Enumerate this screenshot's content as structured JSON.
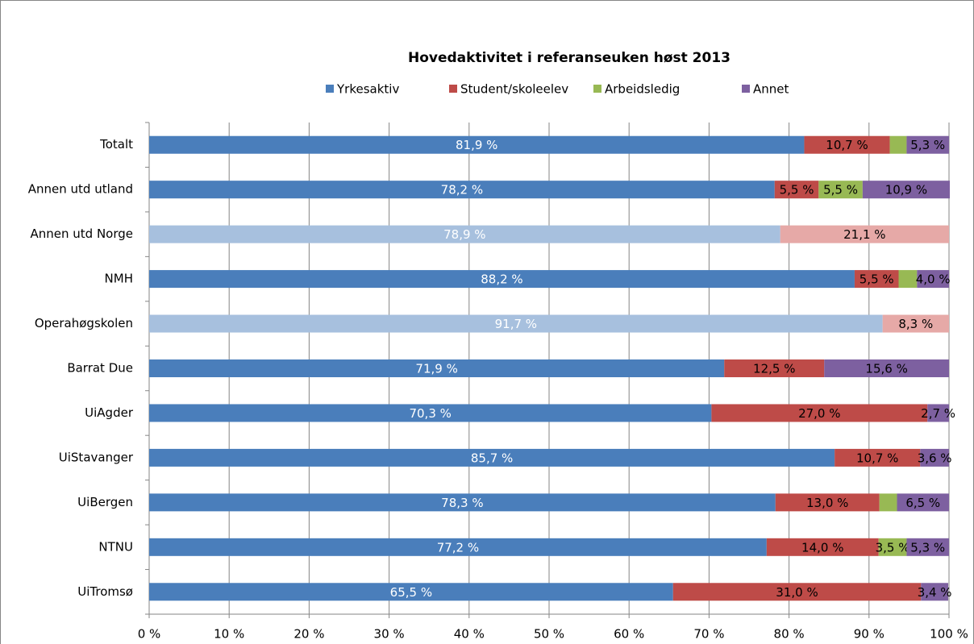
{
  "chart_data": {
    "type": "stacked_bar_horizontal",
    "title": "Hovedaktivitet i referanseuken høst 2013",
    "categories": [
      "Totalt",
      "Annen utd utland",
      "Annen utd Norge",
      "NMH",
      "Operahøgskolen",
      "Barrat Due",
      "UiAgder",
      "UiStavanger",
      "UiBergen",
      "NTNU",
      "UiTromsø"
    ],
    "series": [
      {
        "name": "Yrkesaktiv",
        "color": "#4a7ebb",
        "point_colors": [
          null,
          null,
          "#a7c0de",
          null,
          "#a7c0de",
          null,
          null,
          null,
          null,
          null,
          null
        ],
        "values": [
          81.9,
          78.2,
          78.9,
          88.2,
          91.7,
          71.9,
          70.3,
          85.7,
          78.3,
          77.2,
          65.5
        ],
        "value_labels": [
          "81,9 %",
          "78,2 %",
          "78,9 %",
          "88,2 %",
          "91,7 %",
          "71,9 %",
          "70,3 %",
          "85,7 %",
          "78,3 %",
          "77,2 %",
          "65,5 %"
        ]
      },
      {
        "name": "Student/skoleelev",
        "color": "#be4b48",
        "point_colors": [
          null,
          null,
          "#e6a9a7",
          null,
          "#e6a9a7",
          null,
          null,
          null,
          null,
          null,
          null
        ],
        "values": [
          10.7,
          5.5,
          21.1,
          5.5,
          8.3,
          12.5,
          27.0,
          10.7,
          13.0,
          14.0,
          31.0
        ],
        "value_labels": [
          "10,7 %",
          "5,5 %",
          "21,1 %",
          "5,5 %",
          "8,3 %",
          "12,5 %",
          "27,0 %",
          "10,7 %",
          "13,0 %",
          "14,0 %",
          "31,0 %"
        ]
      },
      {
        "name": "Arbeidsledig",
        "color": "#98b954",
        "point_colors": [
          null,
          null,
          null,
          null,
          null,
          null,
          null,
          null,
          null,
          null,
          null
        ],
        "values": [
          2.1,
          5.5,
          null,
          2.3,
          null,
          null,
          null,
          null,
          2.2,
          3.5,
          null
        ],
        "value_labels": [
          null,
          "5,5 %",
          null,
          null,
          null,
          null,
          null,
          null,
          null,
          "3,5 %",
          null
        ]
      },
      {
        "name": "Annet",
        "color": "#7d60a0",
        "point_colors": [
          null,
          null,
          null,
          null,
          null,
          null,
          null,
          null,
          null,
          null,
          null
        ],
        "values": [
          5.3,
          10.9,
          null,
          4.0,
          null,
          15.6,
          2.7,
          3.6,
          6.5,
          5.3,
          3.4
        ],
        "value_labels": [
          "5,3 %",
          "10,9 %",
          null,
          "4,0 %",
          null,
          "15,6 %",
          "2,7 %",
          "3,6 %",
          "6,5 %",
          "5,3 %",
          "3,4 %"
        ]
      }
    ],
    "xlim": [
      0,
      100
    ],
    "xticks": [
      {
        "value": 0,
        "label": "0 %"
      },
      {
        "value": 10,
        "label": "10 %"
      },
      {
        "value": 20,
        "label": "20 %"
      },
      {
        "value": 30,
        "label": "30 %"
      },
      {
        "value": 40,
        "label": "40 %"
      },
      {
        "value": 50,
        "label": "50 %"
      },
      {
        "value": 60,
        "label": "60 %"
      },
      {
        "value": 70,
        "label": "70 %"
      },
      {
        "value": 80,
        "label": "80 %"
      },
      {
        "value": 90,
        "label": "90 %"
      },
      {
        "value": 100,
        "label": "100 %"
      }
    ],
    "grid": true,
    "legend": "top"
  }
}
